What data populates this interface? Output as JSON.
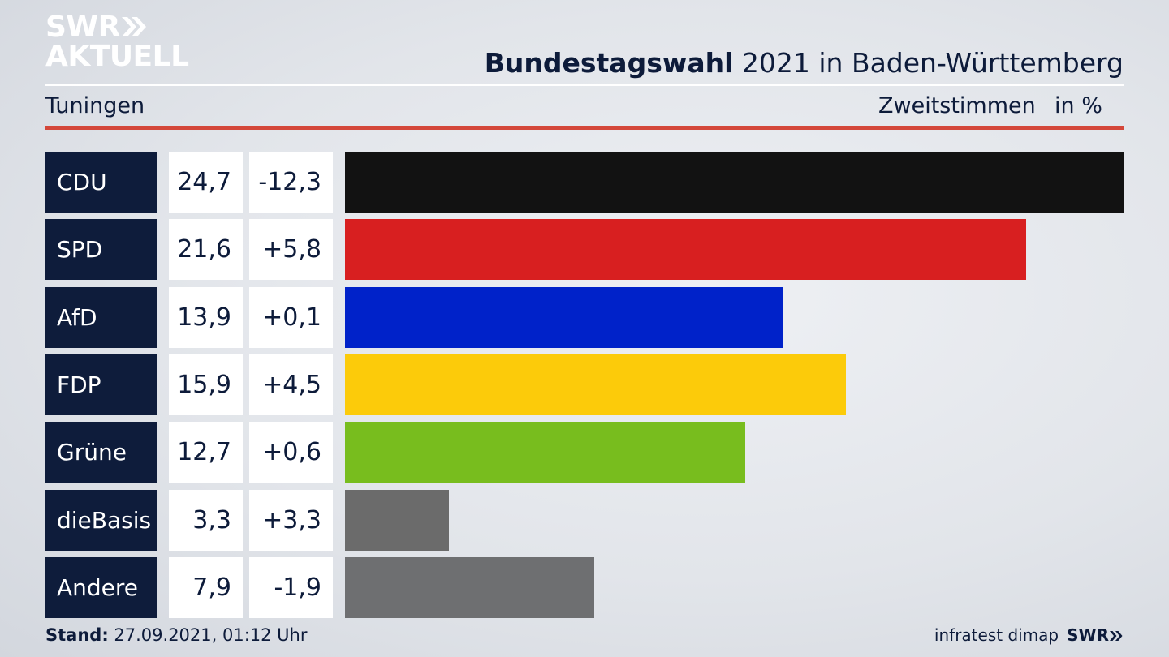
{
  "brand": {
    "logo_line1": "SWR",
    "logo_line2": "AKTUELL",
    "footer_logo": "SWR",
    "source": "infratest dimap"
  },
  "header": {
    "title_bold": "Bundestagswahl",
    "title_rest": " 2021 in Baden-Württemberg",
    "location": "Tuningen",
    "metric": "Zweitstimmen",
    "unit": "in %"
  },
  "footer": {
    "stand_label": "Stand:",
    "stand_value": " 27.09.2021, 01:12 Uhr"
  },
  "chart_data": {
    "type": "bar",
    "orientation": "horizontal",
    "categories": [
      "CDU",
      "SPD",
      "AfD",
      "FDP",
      "Grüne",
      "dieBasis",
      "Andere"
    ],
    "values": [
      24.7,
      21.6,
      13.9,
      15.9,
      12.7,
      3.3,
      7.9
    ],
    "value_labels": [
      "24,7",
      "21,6",
      "13,9",
      "15,9",
      "12,7",
      "3,3",
      "7,9"
    ],
    "diff_labels": [
      "-12,3",
      "+5,8",
      "+0,1",
      "+4,5",
      "+0,6",
      "+3,3",
      "-1,9"
    ],
    "colors": [
      "#121212",
      "#d81f20",
      "#0022c9",
      "#fccb0a",
      "#78bd1e",
      "#6b6b6b",
      "#6e6f71"
    ],
    "xlim": [
      0,
      24.7
    ]
  }
}
